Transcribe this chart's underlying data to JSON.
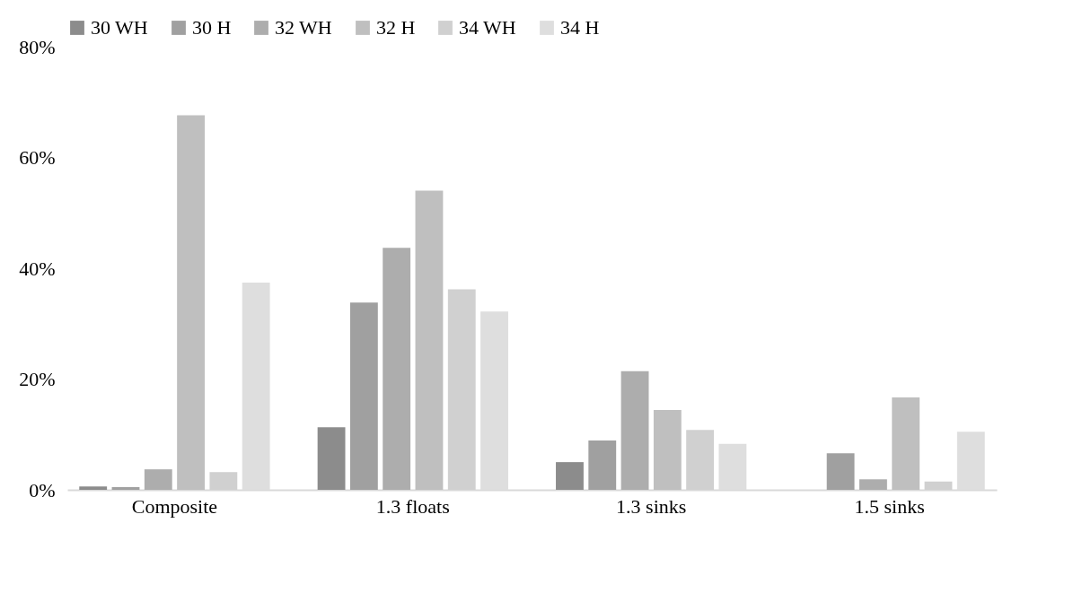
{
  "chart_data": {
    "type": "bar",
    "categories": [
      "Composite",
      "1.3 floats",
      "1.3 sinks",
      "1.5 sinks"
    ],
    "series": [
      {
        "name": "30 WH",
        "color": "#8c8c8c",
        "values": [
          0.6,
          11.3,
          5.0,
          0
        ]
      },
      {
        "name": "30 H",
        "color": "#a0a0a0",
        "values": [
          0.5,
          33.8,
          8.9,
          6.6
        ]
      },
      {
        "name": "32 WH",
        "color": "#adadad",
        "values": [
          3.7,
          43.7,
          21.4,
          1.9
        ]
      },
      {
        "name": "32 H",
        "color": "#bfbfbf",
        "values": [
          67.6,
          54.0,
          14.4,
          16.7
        ]
      },
      {
        "name": "34 WH",
        "color": "#d0d0d0",
        "values": [
          3.2,
          36.2,
          10.8,
          1.5
        ]
      },
      {
        "name": "34 H",
        "color": "#dedede",
        "values": [
          37.4,
          32.2,
          8.3,
          10.5
        ]
      }
    ],
    "ylim": [
      0,
      80
    ],
    "yticks": [
      {
        "value": 0,
        "label": "0%"
      },
      {
        "value": 20,
        "label": "20%"
      },
      {
        "value": 40,
        "label": "40%"
      },
      {
        "value": 60,
        "label": "60%"
      },
      {
        "value": 80,
        "label": "80%"
      }
    ],
    "grid": false,
    "legend": "top"
  }
}
